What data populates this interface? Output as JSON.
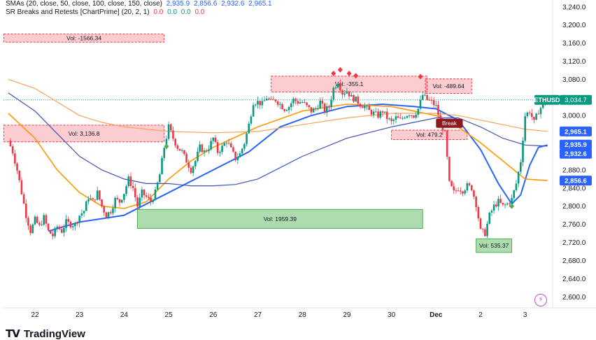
{
  "legend": {
    "sma_title": "SMAs (20, close, 50, close, 100, close, 150, close)",
    "sma_values": [
      "2,935.9",
      "2,856.6",
      "2,932.6",
      "2,965.1"
    ],
    "sr_title": "SR Breaks and Retests [ChartPrime] (20, 2, 1)",
    "sr_values": [
      "0.0",
      "0.0",
      "0.0",
      "0.0"
    ],
    "sr_value_colors": [
      "#f23645",
      "#089981",
      "#089981",
      "#f23645"
    ]
  },
  "brand": {
    "mark": "TV",
    "name": "TradingView"
  },
  "colors": {
    "up": "#089981",
    "down": "#f23645",
    "sma20": "#2962ff",
    "sma50": "#ff9800",
    "sma100": "#3f51b5",
    "sma150": "#f7a35c",
    "box_red": "#f8bcbc",
    "box_green": "#a5d6a7",
    "axis_text": "#131722",
    "grid": "#e0e3eb"
  },
  "chart_data": {
    "type": "candlestick",
    "symbol": "ETHUSD",
    "y_axis": {
      "ticks": [
        "3,240.0",
        "3,200.0",
        "3,160.0",
        "3,120.0",
        "3,080.0",
        "3,040.0",
        "3,000.0",
        "2,960.0",
        "2,920.0",
        "2,880.0",
        "2,840.0",
        "2,800.0",
        "2,760.0",
        "2,720.0",
        "2,680.0",
        "2,640.0",
        "2,600.0"
      ],
      "range": [
        2585,
        3252
      ]
    },
    "x_axis": {
      "ticks": [
        "22",
        "23",
        "24",
        "25",
        "26",
        "27",
        "28",
        "29",
        "30",
        "Dec",
        "2",
        "3"
      ],
      "tick_day_index": [
        0,
        1,
        2,
        3,
        4,
        5,
        6,
        7,
        8,
        9,
        10,
        11
      ]
    },
    "price_labels": [
      {
        "text": "ETHUSD",
        "value": 3034.7,
        "color": "#089981"
      },
      {
        "text": "3,034.7",
        "value": 3034.7,
        "color": "#089981"
      },
      {
        "text": "2,965.1",
        "value": 2965.1,
        "color": "#2962ff"
      },
      {
        "text": "2,935.9",
        "value": 2935.9,
        "color": "#2962ff"
      },
      {
        "text": "2,932.6",
        "value": 2932.6,
        "color": "#2962ff"
      },
      {
        "text": "2,856.6",
        "value": 2856.6,
        "color": "#2962ff"
      }
    ],
    "last_price": 3034.7,
    "zones": [
      {
        "label": "Vol: -1566.34",
        "x0": -0.7,
        "x1": 2.9,
        "y_top": 3180,
        "y_bottom": 3162,
        "kind": "resistance"
      },
      {
        "label": "Vol: -355.1",
        "x0": 5.3,
        "x1": 8.8,
        "y_top": 3087,
        "y_bottom": 3052,
        "kind": "resistance"
      },
      {
        "label": "Vol: -489.64",
        "x0": 8.76,
        "x1": 9.8,
        "y_top": 3081,
        "y_bottom": 3049,
        "kind": "resistance"
      },
      {
        "label": "Vol: 3,136.8",
        "x0": -0.7,
        "x1": 2.9,
        "y_top": 2979,
        "y_bottom": 2942,
        "kind": "resistance"
      },
      {
        "label": "Vol: 479.2",
        "x0": 8.0,
        "x1": 9.7,
        "y_top": 2968,
        "y_bottom": 2947,
        "kind": "resistance"
      },
      {
        "label": "Vol: 1959.39",
        "x0": 2.3,
        "x1": 8.7,
        "y_top": 2793,
        "y_bottom": 2751,
        "kind": "support"
      },
      {
        "label": "Vol: 535.37",
        "x0": 9.9,
        "x1": 10.7,
        "y_top": 2728,
        "y_bottom": 2698,
        "kind": "support"
      }
    ],
    "break_marker": {
      "label": "Break",
      "x0": 9.0,
      "x1": 9.6,
      "y_top": 2993,
      "y_bottom": 2973
    },
    "break_down_markers": [
      {
        "x": 6.7,
        "y": 3093
      },
      {
        "x": 6.85,
        "y": 3101
      },
      {
        "x": 7.05,
        "y": 3093
      },
      {
        "x": 7.2,
        "y": 3088
      },
      {
        "x": 8.65,
        "y": 3086
      }
    ],
    "break_up_markers": [
      {
        "x": 2.95,
        "y": 2932
      },
      {
        "x": 10.7,
        "y": 2800
      }
    ],
    "price_path": [
      [
        -0.6,
        2945
      ],
      [
        -0.5,
        2920
      ],
      [
        -0.4,
        2880
      ],
      [
        -0.3,
        2830
      ],
      [
        -0.2,
        2780
      ],
      [
        -0.1,
        2745
      ],
      [
        0.0,
        2770
      ],
      [
        0.1,
        2755
      ],
      [
        0.2,
        2775
      ],
      [
        0.3,
        2745
      ],
      [
        0.4,
        2735
      ],
      [
        0.5,
        2755
      ],
      [
        0.6,
        2745
      ],
      [
        0.7,
        2765
      ],
      [
        0.8,
        2760
      ],
      [
        0.9,
        2760
      ],
      [
        1.0,
        2780
      ],
      [
        1.1,
        2790
      ],
      [
        1.2,
        2820
      ],
      [
        1.3,
        2810
      ],
      [
        1.4,
        2830
      ],
      [
        1.5,
        2800
      ],
      [
        1.6,
        2780
      ],
      [
        1.7,
        2790
      ],
      [
        1.8,
        2815
      ],
      [
        1.9,
        2810
      ],
      [
        2.0,
        2830
      ],
      [
        2.1,
        2860
      ],
      [
        2.2,
        2840
      ],
      [
        2.3,
        2800
      ],
      [
        2.4,
        2830
      ],
      [
        2.5,
        2820
      ],
      [
        2.6,
        2810
      ],
      [
        2.7,
        2830
      ],
      [
        2.8,
        2870
      ],
      [
        2.9,
        2930
      ],
      [
        3.0,
        2975
      ],
      [
        3.1,
        2950
      ],
      [
        3.2,
        2930
      ],
      [
        3.3,
        2920
      ],
      [
        3.4,
        2900
      ],
      [
        3.5,
        2880
      ],
      [
        3.6,
        2900
      ],
      [
        3.7,
        2930
      ],
      [
        3.8,
        2920
      ],
      [
        3.9,
        2930
      ],
      [
        4.0,
        2950
      ],
      [
        4.1,
        2920
      ],
      [
        4.2,
        2930
      ],
      [
        4.3,
        2945
      ],
      [
        4.4,
        2925
      ],
      [
        4.5,
        2905
      ],
      [
        4.6,
        2915
      ],
      [
        4.7,
        2940
      ],
      [
        4.8,
        2980
      ],
      [
        4.9,
        3030
      ],
      [
        5.0,
        3030
      ],
      [
        5.1,
        3025
      ],
      [
        5.2,
        3040
      ],
      [
        5.3,
        3030
      ],
      [
        5.4,
        3035
      ],
      [
        5.5,
        3025
      ],
      [
        5.6,
        3015
      ],
      [
        5.7,
        3020
      ],
      [
        5.8,
        3035
      ],
      [
        5.9,
        3030
      ],
      [
        6.0,
        3030
      ],
      [
        6.1,
        3020
      ],
      [
        6.2,
        3010
      ],
      [
        6.3,
        3015
      ],
      [
        6.4,
        3030
      ],
      [
        6.5,
        3010
      ],
      [
        6.6,
        3020
      ],
      [
        6.7,
        3060
      ],
      [
        6.8,
        3075
      ],
      [
        6.9,
        3050
      ],
      [
        7.0,
        3055
      ],
      [
        7.1,
        3040
      ],
      [
        7.2,
        3035
      ],
      [
        7.3,
        3025
      ],
      [
        7.4,
        3020
      ],
      [
        7.5,
        3010
      ],
      [
        7.6,
        3005
      ],
      [
        7.7,
        3000
      ],
      [
        7.8,
        3010
      ],
      [
        7.9,
        2995
      ],
      [
        8.0,
        2985
      ],
      [
        8.1,
        2995
      ],
      [
        8.2,
        2990
      ],
      [
        8.3,
        3000
      ],
      [
        8.4,
        3005
      ],
      [
        8.5,
        3000
      ],
      [
        8.6,
        3015
      ],
      [
        8.7,
        3045
      ],
      [
        8.8,
        3035
      ],
      [
        8.9,
        3030
      ],
      [
        9.0,
        3020
      ],
      [
        9.1,
        2985
      ],
      [
        9.2,
        2960
      ],
      [
        9.3,
        2850
      ],
      [
        9.4,
        2830
      ],
      [
        9.5,
        2840
      ],
      [
        9.6,
        2835
      ],
      [
        9.7,
        2845
      ],
      [
        9.8,
        2840
      ],
      [
        9.9,
        2805
      ],
      [
        10.0,
        2745
      ],
      [
        10.1,
        2740
      ],
      [
        10.2,
        2780
      ],
      [
        10.3,
        2800
      ],
      [
        10.4,
        2810
      ],
      [
        10.5,
        2800
      ],
      [
        10.6,
        2805
      ],
      [
        10.7,
        2815
      ],
      [
        10.8,
        2850
      ],
      [
        10.9,
        2900
      ],
      [
        11.0,
        3000
      ],
      [
        11.1,
        3010
      ],
      [
        11.2,
        2985
      ],
      [
        11.3,
        3010
      ],
      [
        11.4,
        3025
      ],
      [
        11.5,
        3034.7
      ]
    ],
    "sma_lines": [
      {
        "name": "SMA 20",
        "color": "#2962ff",
        "width": 2,
        "points": [
          [
            0.3,
            2745
          ],
          [
            1.0,
            2765
          ],
          [
            2.0,
            2780
          ],
          [
            3.0,
            2830
          ],
          [
            4.0,
            2880
          ],
          [
            4.8,
            2920
          ],
          [
            5.5,
            2975
          ],
          [
            6.2,
            3000
          ],
          [
            7.0,
            3020
          ],
          [
            7.8,
            3025
          ],
          [
            8.5,
            3020
          ],
          [
            9.0,
            3015
          ],
          [
            9.5,
            2990
          ],
          [
            10.0,
            2925
          ],
          [
            10.4,
            2850
          ],
          [
            10.7,
            2805
          ],
          [
            10.9,
            2825
          ],
          [
            11.1,
            2890
          ],
          [
            11.3,
            2930
          ],
          [
            11.5,
            2935
          ]
        ]
      },
      {
        "name": "SMA 50",
        "color": "#ff9800",
        "width": 1.6,
        "points": [
          [
            -0.6,
            3005
          ],
          [
            0.0,
            2950
          ],
          [
            0.5,
            2880
          ],
          [
            1.0,
            2830
          ],
          [
            1.5,
            2800
          ],
          [
            2.0,
            2795
          ],
          [
            2.5,
            2810
          ],
          [
            3.0,
            2860
          ],
          [
            3.5,
            2900
          ],
          [
            4.0,
            2930
          ],
          [
            5.0,
            2975
          ],
          [
            6.0,
            3010
          ],
          [
            7.0,
            3025
          ],
          [
            8.0,
            3020
          ],
          [
            9.0,
            3000
          ],
          [
            9.5,
            2975
          ],
          [
            10.0,
            2940
          ],
          [
            10.5,
            2900
          ],
          [
            11.0,
            2860
          ],
          [
            11.5,
            2856.6
          ]
        ]
      },
      {
        "name": "SMA 100",
        "color": "#3f51b5",
        "width": 1.2,
        "points": [
          [
            -0.6,
            3050
          ],
          [
            0.0,
            3010
          ],
          [
            0.5,
            2960
          ],
          [
            1.0,
            2910
          ],
          [
            1.5,
            2880
          ],
          [
            2.0,
            2860
          ],
          [
            2.5,
            2850
          ],
          [
            3.0,
            2850
          ],
          [
            3.5,
            2845
          ],
          [
            4.0,
            2845
          ],
          [
            4.5,
            2848
          ],
          [
            5.0,
            2860
          ],
          [
            6.0,
            2910
          ],
          [
            7.0,
            2950
          ],
          [
            8.0,
            2975
          ],
          [
            9.0,
            2995
          ],
          [
            9.5,
            2995
          ],
          [
            10.0,
            2975
          ],
          [
            10.5,
            2950
          ],
          [
            11.0,
            2935
          ],
          [
            11.5,
            2932.6
          ]
        ]
      },
      {
        "name": "SMA 150",
        "color": "#f7a35c",
        "width": 1.2,
        "points": [
          [
            -0.6,
            3080
          ],
          [
            0.0,
            3060
          ],
          [
            0.5,
            3030
          ],
          [
            1.0,
            3000
          ],
          [
            1.5,
            2985
          ],
          [
            2.0,
            2975
          ],
          [
            2.5,
            2970
          ],
          [
            3.0,
            2965
          ],
          [
            4.0,
            2962
          ],
          [
            5.0,
            2965
          ],
          [
            6.0,
            2980
          ],
          [
            7.0,
            2995
          ],
          [
            8.0,
            3005
          ],
          [
            9.0,
            3005
          ],
          [
            9.5,
            3000
          ],
          [
            10.0,
            2990
          ],
          [
            10.5,
            2980
          ],
          [
            11.0,
            2970
          ],
          [
            11.5,
            2965.1
          ]
        ]
      }
    ]
  }
}
